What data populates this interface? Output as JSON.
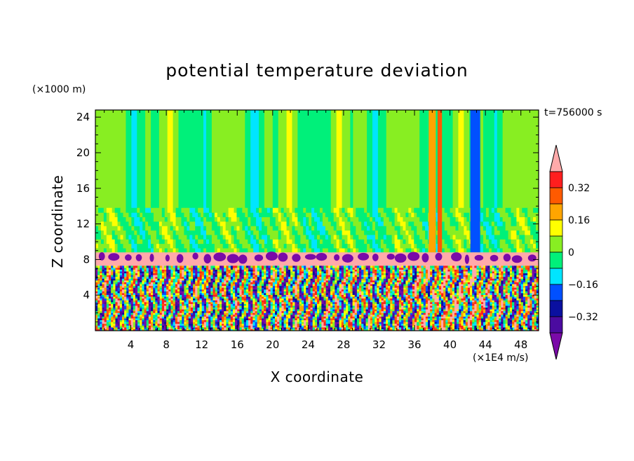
{
  "chart_data": {
    "type": "heatmap",
    "title": "potential temperature deviation",
    "xlabel": "X coordinate",
    "ylabel": "Z coordinate",
    "x_unit": "(×1E4 m/s)",
    "y_unit": "(×1000 m)",
    "time_label": "t=756000 s",
    "xlim": [
      0,
      50
    ],
    "ylim": [
      0,
      24.8
    ],
    "x_ticks": [
      4,
      8,
      12,
      16,
      20,
      24,
      28,
      32,
      36,
      40,
      44,
      48
    ],
    "y_ticks": [
      4,
      8,
      12,
      16,
      20,
      24
    ],
    "colorbar": {
      "labeled_ticks": [
        "0.32",
        "0.16",
        "0",
        "-0.16",
        "-0.32"
      ],
      "levels": [
        -0.4,
        -0.32,
        -0.24,
        -0.16,
        -0.08,
        0,
        0.08,
        0.16,
        0.24,
        0.32,
        0.4
      ],
      "colors": [
        "#7a0aa8",
        "#4b0ba0",
        "#0a10a0",
        "#0050ff",
        "#00e5ff",
        "#00f07a",
        "#88ee22",
        "#ffff00",
        "#ffa500",
        "#ff5a00",
        "#ff1e1e",
        "#ffaaaa"
      ],
      "extend": "both"
    },
    "regions": [
      {
        "z_range": [
          8.8,
          24.8
        ],
        "description_value": "mostly between -0.08 and 0.08 with banded structure"
      },
      {
        "z_range": [
          7.3,
          8.8
        ],
        "value": 0.4
      },
      {
        "z_range": [
          0,
          7.3
        ],
        "value_range": [
          -0.4,
          0.4
        ]
      }
    ]
  }
}
